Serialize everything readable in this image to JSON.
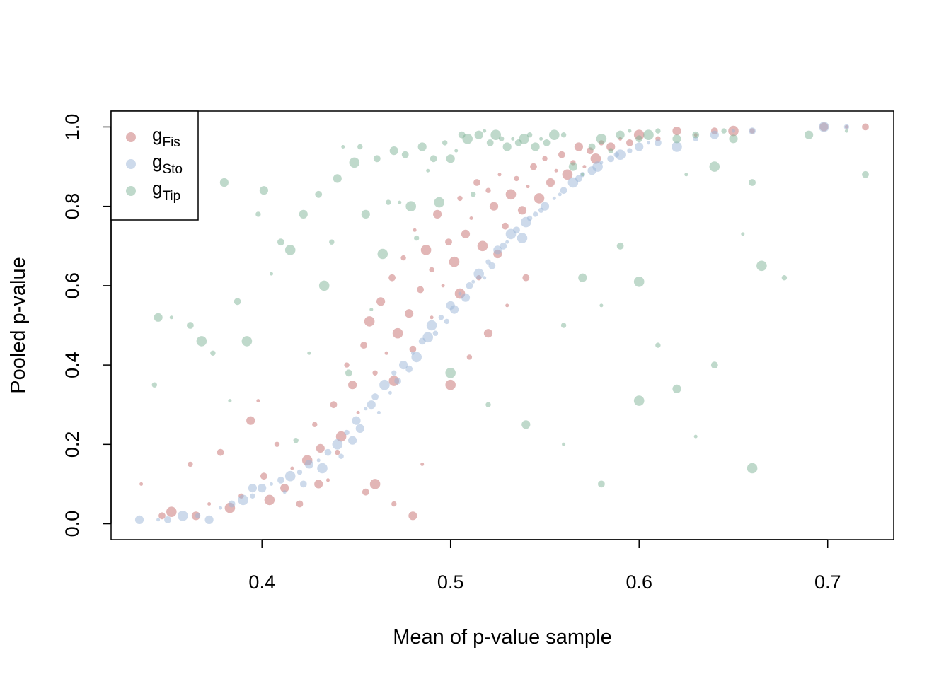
{
  "chart_data": {
    "type": "scatter",
    "title": "",
    "xlabel": "Mean of p-value sample",
    "ylabel": "Pooled p-value",
    "xlim": [
      0.32,
      0.735
    ],
    "ylim": [
      -0.04,
      1.04
    ],
    "x_ticks": [
      0.4,
      0.5,
      0.6,
      0.7
    ],
    "x_tick_labels": [
      "0.4",
      "0.5",
      "0.6",
      "0.7"
    ],
    "y_ticks": [
      0.0,
      0.2,
      0.4,
      0.6,
      0.8,
      1.0
    ],
    "y_tick_labels": [
      "0.0",
      "0.2",
      "0.4",
      "0.6",
      "0.8",
      "1.0"
    ],
    "grid": false,
    "legend_position": "top-left",
    "series": [
      {
        "name": "g",
        "subscript": "Fis",
        "color": "#c56d6d",
        "points": [
          [
            0.336,
            0.1
          ],
          [
            0.347,
            0.02
          ],
          [
            0.352,
            0.03
          ],
          [
            0.362,
            0.15
          ],
          [
            0.365,
            0.02
          ],
          [
            0.372,
            0.05
          ],
          [
            0.378,
            0.18
          ],
          [
            0.383,
            0.04
          ],
          [
            0.389,
            0.07
          ],
          [
            0.394,
            0.26
          ],
          [
            0.398,
            0.31
          ],
          [
            0.401,
            0.12
          ],
          [
            0.404,
            0.06
          ],
          [
            0.408,
            0.2
          ],
          [
            0.412,
            0.09
          ],
          [
            0.416,
            0.14
          ],
          [
            0.42,
            0.05
          ],
          [
            0.424,
            0.16
          ],
          [
            0.428,
            0.25
          ],
          [
            0.431,
            0.19
          ],
          [
            0.435,
            0.11
          ],
          [
            0.438,
            0.3
          ],
          [
            0.442,
            0.22
          ],
          [
            0.445,
            0.4
          ],
          [
            0.448,
            0.35
          ],
          [
            0.451,
            0.28
          ],
          [
            0.454,
            0.45
          ],
          [
            0.457,
            0.51
          ],
          [
            0.46,
            0.38
          ],
          [
            0.463,
            0.56
          ],
          [
            0.466,
            0.43
          ],
          [
            0.469,
            0.62
          ],
          [
            0.472,
            0.48
          ],
          [
            0.475,
            0.67
          ],
          [
            0.478,
            0.53
          ],
          [
            0.481,
            0.74
          ],
          [
            0.484,
            0.59
          ],
          [
            0.487,
            0.69
          ],
          [
            0.49,
            0.64
          ],
          [
            0.493,
            0.78
          ],
          [
            0.496,
            0.6
          ],
          [
            0.499,
            0.71
          ],
          [
            0.502,
            0.66
          ],
          [
            0.505,
            0.82
          ],
          [
            0.508,
            0.73
          ],
          [
            0.511,
            0.77
          ],
          [
            0.514,
            0.86
          ],
          [
            0.517,
            0.7
          ],
          [
            0.52,
            0.84
          ],
          [
            0.523,
            0.8
          ],
          [
            0.526,
            0.88
          ],
          [
            0.529,
            0.75
          ],
          [
            0.532,
            0.83
          ],
          [
            0.535,
            0.87
          ],
          [
            0.538,
            0.79
          ],
          [
            0.541,
            0.85
          ],
          [
            0.544,
            0.9
          ],
          [
            0.547,
            0.82
          ],
          [
            0.55,
            0.92
          ],
          [
            0.553,
            0.86
          ],
          [
            0.556,
            0.89
          ],
          [
            0.559,
            0.93
          ],
          [
            0.562,
            0.88
          ],
          [
            0.565,
            0.91
          ],
          [
            0.568,
            0.95
          ],
          [
            0.571,
            0.9
          ],
          [
            0.574,
            0.94
          ],
          [
            0.577,
            0.92
          ],
          [
            0.58,
            0.96
          ],
          [
            0.585,
            0.95
          ],
          [
            0.59,
            0.97
          ],
          [
            0.595,
            0.96
          ],
          [
            0.6,
            0.98
          ],
          [
            0.61,
            0.97
          ],
          [
            0.62,
            0.99
          ],
          [
            0.63,
            0.98
          ],
          [
            0.64,
            0.99
          ],
          [
            0.65,
            0.99
          ],
          [
            0.66,
            0.99
          ],
          [
            0.698,
            1.0
          ],
          [
            0.71,
            1.0
          ],
          [
            0.72,
            1.0
          ],
          [
            0.46,
            0.1
          ],
          [
            0.47,
            0.05
          ],
          [
            0.48,
            0.02
          ],
          [
            0.485,
            0.15
          ],
          [
            0.455,
            0.08
          ],
          [
            0.5,
            0.35
          ],
          [
            0.51,
            0.42
          ],
          [
            0.52,
            0.48
          ],
          [
            0.53,
            0.55
          ],
          [
            0.54,
            0.62
          ],
          [
            0.505,
            0.58
          ],
          [
            0.515,
            0.62
          ],
          [
            0.525,
            0.68
          ],
          [
            0.49,
            0.52
          ],
          [
            0.48,
            0.44
          ],
          [
            0.47,
            0.36
          ],
          [
            0.44,
            0.18
          ],
          [
            0.43,
            0.1
          ]
        ]
      },
      {
        "name": "g",
        "subscript": "Sto",
        "color": "#9bb6d8",
        "points": [
          [
            0.335,
            0.01
          ],
          [
            0.345,
            0.01
          ],
          [
            0.35,
            0.01
          ],
          [
            0.358,
            0.02
          ],
          [
            0.366,
            0.02
          ],
          [
            0.372,
            0.01
          ],
          [
            0.378,
            0.04
          ],
          [
            0.384,
            0.05
          ],
          [
            0.39,
            0.06
          ],
          [
            0.395,
            0.07
          ],
          [
            0.4,
            0.09
          ],
          [
            0.405,
            0.1
          ],
          [
            0.41,
            0.11
          ],
          [
            0.415,
            0.12
          ],
          [
            0.42,
            0.13
          ],
          [
            0.425,
            0.15
          ],
          [
            0.43,
            0.16
          ],
          [
            0.435,
            0.18
          ],
          [
            0.44,
            0.2
          ],
          [
            0.445,
            0.23
          ],
          [
            0.45,
            0.26
          ],
          [
            0.455,
            0.29
          ],
          [
            0.46,
            0.32
          ],
          [
            0.465,
            0.35
          ],
          [
            0.47,
            0.38
          ],
          [
            0.475,
            0.4
          ],
          [
            0.48,
            0.43
          ],
          [
            0.485,
            0.46
          ],
          [
            0.49,
            0.5
          ],
          [
            0.495,
            0.52
          ],
          [
            0.5,
            0.55
          ],
          [
            0.505,
            0.58
          ],
          [
            0.51,
            0.6
          ],
          [
            0.515,
            0.63
          ],
          [
            0.52,
            0.66
          ],
          [
            0.525,
            0.69
          ],
          [
            0.53,
            0.71
          ],
          [
            0.535,
            0.74
          ],
          [
            0.54,
            0.76
          ],
          [
            0.545,
            0.78
          ],
          [
            0.55,
            0.8
          ],
          [
            0.555,
            0.82
          ],
          [
            0.56,
            0.84
          ],
          [
            0.565,
            0.86
          ],
          [
            0.57,
            0.88
          ],
          [
            0.575,
            0.89
          ],
          [
            0.58,
            0.91
          ],
          [
            0.585,
            0.92
          ],
          [
            0.59,
            0.93
          ],
          [
            0.595,
            0.94
          ],
          [
            0.6,
            0.95
          ],
          [
            0.605,
            0.96
          ],
          [
            0.61,
            0.96
          ],
          [
            0.62,
            0.95
          ],
          [
            0.63,
            0.97
          ],
          [
            0.64,
            0.98
          ],
          [
            0.65,
            0.99
          ],
          [
            0.66,
            0.99
          ],
          [
            0.698,
            1.0
          ],
          [
            0.71,
            1.0
          ],
          [
            0.458,
            0.3
          ],
          [
            0.468,
            0.33
          ],
          [
            0.478,
            0.39
          ],
          [
            0.488,
            0.47
          ],
          [
            0.498,
            0.51
          ],
          [
            0.508,
            0.57
          ],
          [
            0.518,
            0.62
          ],
          [
            0.528,
            0.7
          ],
          [
            0.538,
            0.72
          ],
          [
            0.548,
            0.79
          ],
          [
            0.452,
            0.24
          ],
          [
            0.462,
            0.28
          ],
          [
            0.472,
            0.36
          ],
          [
            0.482,
            0.42
          ],
          [
            0.492,
            0.48
          ],
          [
            0.502,
            0.54
          ],
          [
            0.512,
            0.61
          ],
          [
            0.522,
            0.65
          ],
          [
            0.532,
            0.73
          ],
          [
            0.542,
            0.77
          ],
          [
            0.395,
            0.09
          ],
          [
            0.412,
            0.08
          ],
          [
            0.422,
            0.1
          ],
          [
            0.432,
            0.14
          ],
          [
            0.442,
            0.17
          ],
          [
            0.448,
            0.21
          ],
          [
            0.558,
            0.83
          ],
          [
            0.568,
            0.87
          ],
          [
            0.578,
            0.9
          ],
          [
            0.588,
            0.93
          ]
        ]
      },
      {
        "name": "g",
        "subscript": "Tip",
        "color": "#7fb497",
        "points": [
          [
            0.343,
            0.35
          ],
          [
            0.345,
            0.52
          ],
          [
            0.352,
            0.52
          ],
          [
            0.362,
            0.5
          ],
          [
            0.368,
            0.46
          ],
          [
            0.374,
            0.43
          ],
          [
            0.38,
            0.86
          ],
          [
            0.383,
            0.31
          ],
          [
            0.387,
            0.56
          ],
          [
            0.392,
            0.46
          ],
          [
            0.398,
            0.78
          ],
          [
            0.401,
            0.84
          ],
          [
            0.405,
            0.63
          ],
          [
            0.41,
            0.71
          ],
          [
            0.415,
            0.69
          ],
          [
            0.418,
            0.21
          ],
          [
            0.422,
            0.78
          ],
          [
            0.425,
            0.43
          ],
          [
            0.43,
            0.83
          ],
          [
            0.433,
            0.6
          ],
          [
            0.437,
            0.71
          ],
          [
            0.44,
            0.87
          ],
          [
            0.443,
            0.95
          ],
          [
            0.446,
            0.38
          ],
          [
            0.449,
            0.91
          ],
          [
            0.452,
            0.95
          ],
          [
            0.455,
            0.78
          ],
          [
            0.458,
            0.54
          ],
          [
            0.461,
            0.92
          ],
          [
            0.464,
            0.68
          ],
          [
            0.467,
            0.81
          ],
          [
            0.47,
            0.94
          ],
          [
            0.473,
            0.81
          ],
          [
            0.476,
            0.93
          ],
          [
            0.479,
            0.8
          ],
          [
            0.482,
            0.72
          ],
          [
            0.485,
            0.95
          ],
          [
            0.488,
            0.89
          ],
          [
            0.491,
            0.92
          ],
          [
            0.494,
            0.81
          ],
          [
            0.497,
            0.96
          ],
          [
            0.5,
            0.92
          ],
          [
            0.503,
            0.94
          ],
          [
            0.506,
            0.98
          ],
          [
            0.509,
            0.97
          ],
          [
            0.512,
            0.83
          ],
          [
            0.515,
            0.98
          ],
          [
            0.518,
            0.99
          ],
          [
            0.521,
            0.96
          ],
          [
            0.524,
            0.98
          ],
          [
            0.527,
            0.97
          ],
          [
            0.53,
            0.95
          ],
          [
            0.533,
            0.97
          ],
          [
            0.536,
            0.96
          ],
          [
            0.539,
            0.97
          ],
          [
            0.542,
            0.98
          ],
          [
            0.545,
            0.95
          ],
          [
            0.548,
            0.97
          ],
          [
            0.551,
            0.96
          ],
          [
            0.555,
            0.98
          ],
          [
            0.56,
            0.98
          ],
          [
            0.565,
            0.9
          ],
          [
            0.57,
            0.88
          ],
          [
            0.575,
            0.95
          ],
          [
            0.58,
            0.97
          ],
          [
            0.585,
            0.94
          ],
          [
            0.59,
            0.98
          ],
          [
            0.595,
            0.99
          ],
          [
            0.6,
            0.97
          ],
          [
            0.605,
            0.98
          ],
          [
            0.61,
            0.99
          ],
          [
            0.62,
            0.97
          ],
          [
            0.625,
            0.88
          ],
          [
            0.63,
            0.98
          ],
          [
            0.64,
            0.9
          ],
          [
            0.645,
            0.99
          ],
          [
            0.65,
            0.97
          ],
          [
            0.655,
            0.73
          ],
          [
            0.66,
            0.86
          ],
          [
            0.665,
            0.65
          ],
          [
            0.677,
            0.62
          ],
          [
            0.69,
            0.98
          ],
          [
            0.71,
            0.99
          ],
          [
            0.72,
            0.88
          ],
          [
            0.5,
            0.38
          ],
          [
            0.52,
            0.3
          ],
          [
            0.54,
            0.25
          ],
          [
            0.56,
            0.2
          ],
          [
            0.58,
            0.1
          ],
          [
            0.6,
            0.31
          ],
          [
            0.61,
            0.45
          ],
          [
            0.62,
            0.34
          ],
          [
            0.63,
            0.22
          ],
          [
            0.64,
            0.4
          ],
          [
            0.66,
            0.14
          ],
          [
            0.56,
            0.5
          ],
          [
            0.57,
            0.62
          ],
          [
            0.58,
            0.55
          ],
          [
            0.59,
            0.7
          ],
          [
            0.6,
            0.61
          ]
        ]
      }
    ]
  }
}
